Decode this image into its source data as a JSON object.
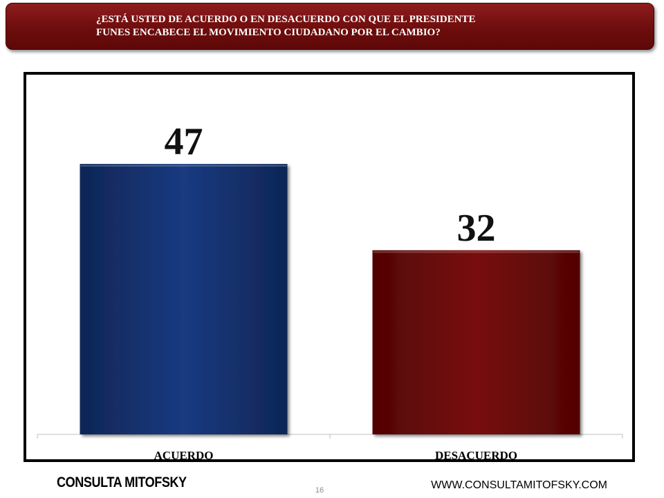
{
  "title": "¿ESTÁ USTED DE ACUERDO O EN DESACUERDO CON QUE EL PRESIDENTE\n   FUNES ENCABECE EL MOVIMIENTO CIUDADANO POR EL CAMBIO?",
  "footer": {
    "brand": "CONSULTA MITOFSKY",
    "page_number": "16",
    "url": "WWW.CONSULTAMITOFSKY.COM"
  },
  "colors": {
    "banner": "#6e0d0d",
    "acuerdo_bar": "#14306e",
    "desacuerdo_bar": "#650808"
  },
  "chart_data": {
    "type": "bar",
    "categories": [
      "ACUERDO",
      "DESACUERDO"
    ],
    "values": [
      47,
      32
    ],
    "ylim": [
      0,
      55
    ],
    "grid": false,
    "title": "",
    "xlabel": "",
    "ylabel": ""
  }
}
